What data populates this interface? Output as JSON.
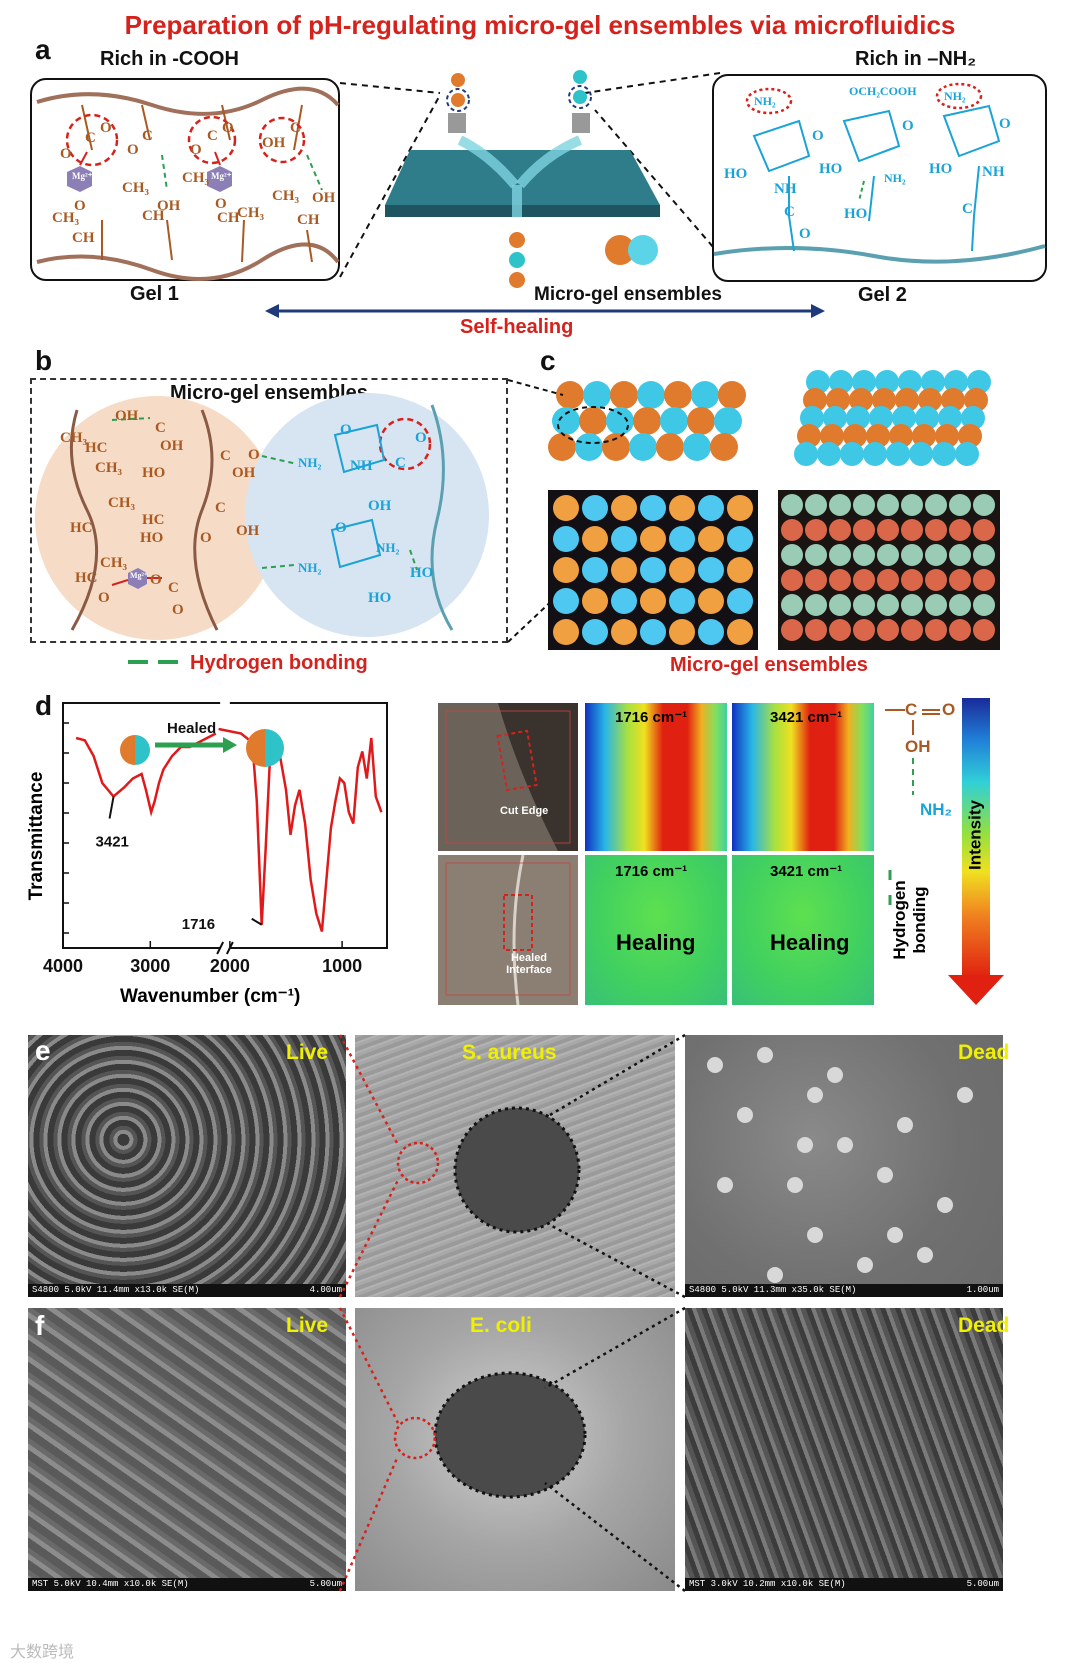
{
  "title": "Preparation of pH-regulating micro-gel ensembles via microfluidics",
  "panel_labels": {
    "a": "a",
    "b": "b",
    "c": "c",
    "d": "d",
    "e": "e",
    "f": "f"
  },
  "panel_a": {
    "left_header": "Rich in -COOH",
    "right_header": "Rich in –NH₂",
    "gel1": "Gel 1",
    "gel2": "Gel 2",
    "ensembles": "Micro-gel ensembles",
    "self_healing": "Self-healing",
    "left_chem": {
      "mg1": "Mg²⁺",
      "mg2": "Mg²⁺",
      "oh1": "OH",
      "oh2": "OH",
      "oh3": "OH",
      "ch3a": "CH₃",
      "ch3b": "CH₃",
      "ch3c": "CH₃",
      "ch3d": "CH₃",
      "ch3e": "CH₃",
      "ch1": "CH",
      "ch2": "CH",
      "ch3": "CH",
      "ch4": "CH",
      "c1": "C",
      "c2": "C",
      "c3": "C",
      "c4": "C",
      "o1": "O",
      "o2": "O",
      "o3": "O",
      "o4": "O",
      "o5": "O",
      "o6": "O",
      "o7": "O"
    },
    "right_chem": {
      "nh2a": "NH₂",
      "nh2b": "NH₂",
      "nh2c": "NH₂",
      "cooh": "OCH₂COOH",
      "ho1": "HO",
      "ho2": "HO",
      "ho3": "HO",
      "ho4": "HO",
      "nh1": "NH",
      "nh2": "NH",
      "o1": "O",
      "o2": "O",
      "o3": "O",
      "o4": "O",
      "c1": "C",
      "c2": "C"
    }
  },
  "panel_b": {
    "title": "Micro-gel ensembles",
    "legend": "Hydrogen bonding",
    "left_chem": {
      "oh1": "OH",
      "oh2": "OH",
      "oh3": "OH",
      "oh4": "OH",
      "ch3a": "CH₃",
      "ch3b": "CH₃",
      "ch3c": "CH₃",
      "ch3d": "CH₃",
      "hc1": "HC",
      "hc2": "HC",
      "hc3": "HC",
      "hc4": "HC",
      "c1": "C",
      "c2": "C",
      "c3": "C",
      "c4": "C",
      "o1": "O",
      "o2": "O",
      "o3": "O",
      "o4": "O",
      "o5": "O",
      "ho1": "HO",
      "ho2": "HO",
      "mg": "Mg²⁺"
    },
    "right_chem": {
      "nh2a": "NH₂",
      "nh2b": "NH₂",
      "nh": "NH",
      "oh": "OH",
      "ho1": "HO",
      "ho2": "HO",
      "o1": "O",
      "o2": "O",
      "o3": "O",
      "c1": "C"
    }
  },
  "panel_c": {
    "caption": "Micro-gel ensembles"
  },
  "panel_d": {
    "ylabel": "Transmittance",
    "xlabel": "Wavenumber (cm⁻¹)",
    "ticks": [
      "4000",
      "3000",
      "2000",
      "1000"
    ],
    "healed": "Healed",
    "peak1": "3421",
    "peak2": "1716",
    "map": {
      "cut_edge": "Cut Edge",
      "healed_interface_1": "Healed",
      "healed_interface_2": "Interface",
      "h1": "1716 cm⁻¹",
      "h2": "3421 cm⁻¹",
      "h3": "1716 cm⁻¹",
      "h4": "3421 cm⁻¹",
      "healing1": "Healing",
      "healing2": "Healing",
      "intensity": "Intensity",
      "hbond1": "Hydrogen",
      "hbond2": "bonding",
      "chem_c": "C",
      "chem_o": "O",
      "chem_oh": "OH",
      "chem_nh2": "NH₂"
    }
  },
  "panel_e": {
    "live": "Live",
    "organism": "S. aureus",
    "dead": "Dead",
    "bar_left": "S4800 5.0kV 11.4mm x13.0k SE(M)",
    "bar_left_scale": "4.00um",
    "bar_right": "S4800 5.0kV 11.3mm x35.0k SE(M)",
    "bar_right_scale": "1.00um"
  },
  "panel_f": {
    "live": "Live",
    "organism": "E. coli",
    "dead": "Dead",
    "bar_left": "MST 5.0kV 10.4mm x10.0k SE(M)",
    "bar_left_scale": "5.00um",
    "bar_right": "MST 3.0kV 10.2mm x10.0k SE(M)",
    "bar_right_scale": "5.00um"
  },
  "watermark": "大数跨境",
  "colors": {
    "red": "#d6221c",
    "brown": "#a85a22",
    "cyan": "#1aa3d6",
    "orange": "#e07b2e",
    "teal": "#2ec2c9",
    "navy": "#1f3a7a"
  },
  "chart_data": {
    "type": "line",
    "title": "",
    "xlabel": "Wavenumber (cm⁻¹)",
    "ylabel": "Transmittance",
    "x_ticks": [
      4000,
      3000,
      2000,
      1000
    ],
    "xlim": [
      4000,
      600
    ],
    "axis_break": [
      2200,
      2000
    ],
    "annotations": [
      {
        "x": 3421,
        "label": "3421"
      },
      {
        "x": 1716,
        "label": "1716"
      }
    ],
    "series": [
      {
        "values_x": [
          3850,
          3750,
          3650,
          3550,
          3421,
          3300,
          3200,
          3100,
          3050,
          2990,
          2950,
          2900,
          2850,
          2750,
          2650,
          2550,
          2250,
          2100,
          1900,
          1800,
          1760,
          1716,
          1680,
          1640,
          1600,
          1560,
          1500,
          1460,
          1420,
          1380,
          1330,
          1280,
          1230,
          1180,
          1140,
          1100,
          1060,
          1020,
          980,
          940,
          900,
          860,
          820,
          780,
          740,
          700,
          650
        ],
        "values_y": [
          0.88,
          0.87,
          0.8,
          0.68,
          0.62,
          0.66,
          0.7,
          0.72,
          0.65,
          0.55,
          0.6,
          0.68,
          0.74,
          0.8,
          0.84,
          0.84,
          0.9,
          0.92,
          0.9,
          0.86,
          0.6,
          0.05,
          0.4,
          0.82,
          0.86,
          0.82,
          0.65,
          0.45,
          0.58,
          0.65,
          0.5,
          0.25,
          0.1,
          0.02,
          0.25,
          0.48,
          0.6,
          0.7,
          0.68,
          0.55,
          0.5,
          0.75,
          0.82,
          0.7,
          0.88,
          0.62,
          0.55
        ]
      }
    ]
  }
}
